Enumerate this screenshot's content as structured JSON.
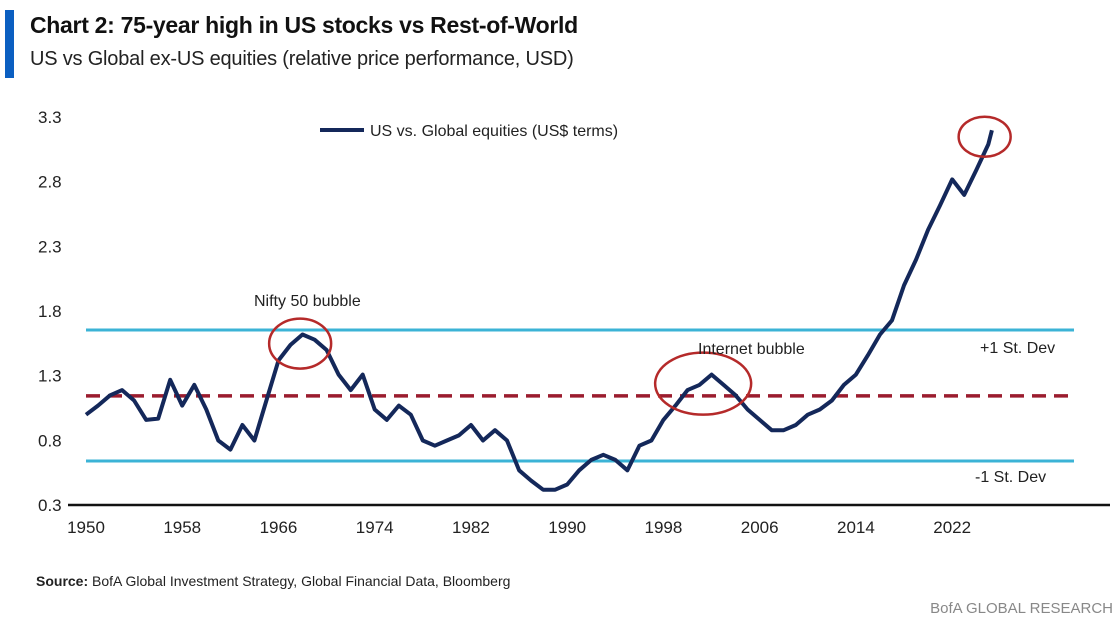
{
  "header": {
    "title": "Chart 2: 75-year high in US stocks vs Rest-of-World",
    "subtitle": "US vs Global ex-US equities (relative price performance, USD)"
  },
  "footer": {
    "source_label": "Source:",
    "source_text": "BofA Global Investment Strategy, Global Financial Data, Bloomberg",
    "brand": "BofA GLOBAL RESEARCH"
  },
  "chart_data": {
    "type": "line",
    "title": "",
    "xlabel": "",
    "ylabel": "",
    "xlim": [
      1950,
      2026.5
    ],
    "ylim": [
      0.3,
      3.3
    ],
    "x_ticks": [
      "1950",
      "1958",
      "1966",
      "1974",
      "1982",
      "1990",
      "1998",
      "2006",
      "2014",
      "2022"
    ],
    "y_ticks": [
      "3.3",
      "2.8",
      "2.3",
      "1.8",
      "1.3",
      "0.8",
      "0.3"
    ],
    "grid": false,
    "legend_position": "top-center",
    "series": [
      {
        "name": "US vs. Global equities (US$ terms)",
        "color": "#14285a",
        "x": [
          1950,
          1951,
          1952,
          1953,
          1954,
          1955,
          1956,
          1957,
          1958,
          1959,
          1960,
          1961,
          1962,
          1963,
          1964,
          1965,
          1966,
          1967,
          1968,
          1969,
          1970,
          1971,
          1972,
          1973,
          1974,
          1975,
          1976,
          1977,
          1978,
          1979,
          1980,
          1981,
          1982,
          1983,
          1984,
          1985,
          1986,
          1987,
          1988,
          1989,
          1990,
          1991,
          1992,
          1993,
          1994,
          1995,
          1996,
          1997,
          1998,
          1999,
          2000,
          2001,
          2002,
          2003,
          2004,
          2005,
          2006,
          2007,
          2008,
          2009,
          2010,
          2011,
          2012,
          2013,
          2014,
          2015,
          2016,
          2017,
          2018,
          2019,
          2020,
          2021,
          2022,
          2023,
          2024,
          2025,
          2025.3
        ],
        "values": [
          0.99,
          1.06,
          1.14,
          1.18,
          1.1,
          0.95,
          0.96,
          1.26,
          1.06,
          1.22,
          1.03,
          0.79,
          0.72,
          0.91,
          0.79,
          1.1,
          1.41,
          1.53,
          1.61,
          1.57,
          1.49,
          1.3,
          1.18,
          1.3,
          1.03,
          0.95,
          1.06,
          0.99,
          0.79,
          0.75,
          0.79,
          0.83,
          0.91,
          0.79,
          0.87,
          0.79,
          0.56,
          0.48,
          0.41,
          0.41,
          0.45,
          0.56,
          0.64,
          0.68,
          0.64,
          0.56,
          0.75,
          0.79,
          0.95,
          1.06,
          1.18,
          1.22,
          1.3,
          1.22,
          1.14,
          1.03,
          0.95,
          0.87,
          0.87,
          0.91,
          0.99,
          1.03,
          1.1,
          1.22,
          1.3,
          1.45,
          1.61,
          1.72,
          1.99,
          2.19,
          2.42,
          2.61,
          2.81,
          2.69,
          2.88,
          3.08,
          3.19
        ]
      }
    ],
    "reference_lines": [
      {
        "label": "+1 St. Dev",
        "value": 1.645,
        "color": "#3bb3d6",
        "style": "solid"
      },
      {
        "label": "",
        "value": 1.135,
        "color": "#9b1c2e",
        "style": "dashed"
      },
      {
        "label": "-1 St. Dev",
        "value": 0.632,
        "color": "#3bb3d6",
        "style": "solid"
      }
    ],
    "annotations": [
      {
        "label": "Nifty 50 bubble",
        "year": 1967.8,
        "value": 1.54,
        "color": "#b52a2a"
      },
      {
        "label": "Internet bubble",
        "year": 2001.3,
        "value": 1.23,
        "color": "#b52a2a"
      },
      {
        "label": "",
        "year": 2024.7,
        "value": 3.14,
        "color": "#b52a2a"
      }
    ]
  }
}
